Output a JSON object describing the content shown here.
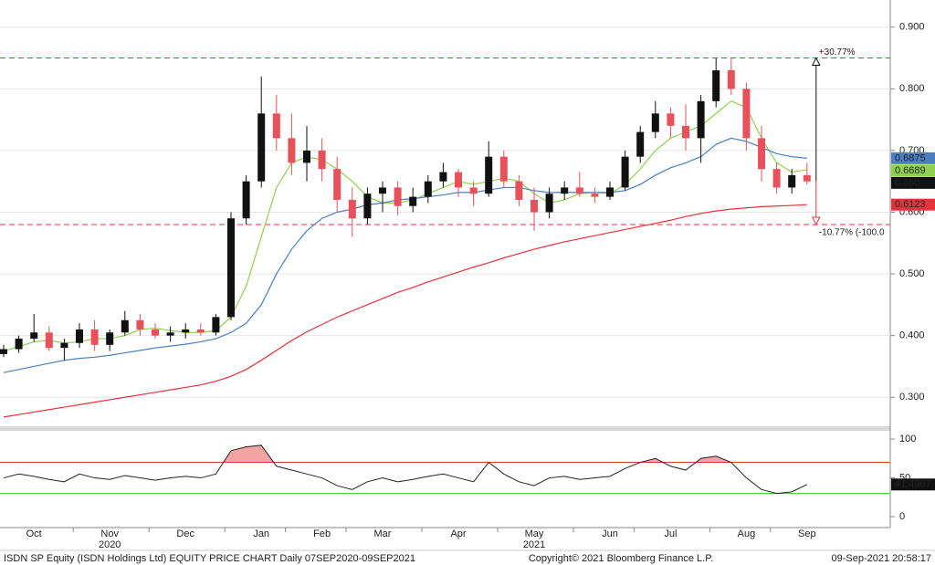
{
  "chart_data": [
    {
      "type": "candlestick",
      "up_color": "#111111",
      "down_color": "#e8505b",
      "open": [
        0.37,
        0.378,
        0.395,
        0.405,
        0.38,
        0.388,
        0.41,
        0.385,
        0.405,
        0.425,
        0.41,
        0.4,
        0.405,
        0.41,
        0.405,
        0.43,
        0.59,
        0.65,
        0.76,
        0.72,
        0.68,
        0.7,
        0.67,
        0.62,
        0.59,
        0.63,
        0.64,
        0.61,
        0.625,
        0.65,
        0.665,
        0.64,
        0.63,
        0.69,
        0.65,
        0.62,
        0.6,
        0.63,
        0.64,
        0.63,
        0.625,
        0.64,
        0.69,
        0.73,
        0.76,
        0.74,
        0.72,
        0.78,
        0.83,
        0.8,
        0.72,
        0.67,
        0.64,
        0.66
      ],
      "high": [
        0.385,
        0.4,
        0.435,
        0.415,
        0.395,
        0.42,
        0.425,
        0.41,
        0.44,
        0.435,
        0.42,
        0.415,
        0.42,
        0.42,
        0.435,
        0.6,
        0.66,
        0.82,
        0.79,
        0.76,
        0.74,
        0.72,
        0.69,
        0.64,
        0.64,
        0.65,
        0.65,
        0.64,
        0.66,
        0.68,
        0.67,
        0.65,
        0.715,
        0.7,
        0.66,
        0.64,
        0.64,
        0.65,
        0.665,
        0.64,
        0.65,
        0.7,
        0.74,
        0.78,
        0.77,
        0.775,
        0.79,
        0.85,
        0.85,
        0.81,
        0.74,
        0.68,
        0.67,
        0.68
      ],
      "low": [
        0.365,
        0.372,
        0.39,
        0.375,
        0.36,
        0.38,
        0.375,
        0.375,
        0.4,
        0.4,
        0.395,
        0.39,
        0.395,
        0.4,
        0.4,
        0.425,
        0.58,
        0.64,
        0.7,
        0.66,
        0.65,
        0.65,
        0.6,
        0.56,
        0.58,
        0.6,
        0.595,
        0.6,
        0.615,
        0.64,
        0.625,
        0.61,
        0.625,
        0.64,
        0.61,
        0.57,
        0.59,
        0.62,
        0.625,
        0.615,
        0.62,
        0.635,
        0.68,
        0.72,
        0.72,
        0.7,
        0.68,
        0.77,
        0.79,
        0.7,
        0.65,
        0.63,
        0.63,
        0.645
      ],
      "close": [
        0.378,
        0.395,
        0.405,
        0.38,
        0.388,
        0.41,
        0.385,
        0.405,
        0.425,
        0.41,
        0.4,
        0.405,
        0.41,
        0.405,
        0.43,
        0.59,
        0.65,
        0.76,
        0.72,
        0.68,
        0.7,
        0.67,
        0.62,
        0.59,
        0.63,
        0.64,
        0.61,
        0.625,
        0.65,
        0.665,
        0.64,
        0.63,
        0.69,
        0.65,
        0.62,
        0.6,
        0.63,
        0.64,
        0.63,
        0.625,
        0.64,
        0.69,
        0.73,
        0.76,
        0.74,
        0.72,
        0.78,
        0.83,
        0.8,
        0.72,
        0.67,
        0.64,
        0.66,
        0.65
      ],
      "last_close_label": "0.650",
      "series": [
        {
          "color": "#8fd14f",
          "values": [
            0.375,
            0.382,
            0.39,
            0.392,
            0.388,
            0.39,
            0.395,
            0.395,
            0.4,
            0.41,
            0.412,
            0.408,
            0.405,
            0.405,
            0.408,
            0.43,
            0.48,
            0.56,
            0.64,
            0.68,
            0.69,
            0.685,
            0.67,
            0.65,
            0.625,
            0.615,
            0.615,
            0.62,
            0.63,
            0.64,
            0.65,
            0.645,
            0.65,
            0.655,
            0.65,
            0.63,
            0.615,
            0.62,
            0.63,
            0.632,
            0.63,
            0.645,
            0.67,
            0.7,
            0.72,
            0.73,
            0.74,
            0.76,
            0.78,
            0.77,
            0.72,
            0.68,
            0.665,
            0.6689
          ]
        },
        {
          "color": "#4a7fc1",
          "values": [
            0.34,
            0.345,
            0.35,
            0.355,
            0.36,
            0.363,
            0.365,
            0.368,
            0.372,
            0.376,
            0.38,
            0.383,
            0.386,
            0.39,
            0.395,
            0.405,
            0.42,
            0.45,
            0.5,
            0.54,
            0.57,
            0.59,
            0.6,
            0.605,
            0.612,
            0.615,
            0.62,
            0.622,
            0.625,
            0.628,
            0.632,
            0.632,
            0.636,
            0.64,
            0.64,
            0.635,
            0.632,
            0.632,
            0.632,
            0.632,
            0.632,
            0.635,
            0.645,
            0.66,
            0.672,
            0.68,
            0.69,
            0.71,
            0.72,
            0.715,
            0.705,
            0.695,
            0.69,
            0.6875
          ]
        },
        {
          "color": "#e8323c",
          "values": [
            0.268,
            0.272,
            0.276,
            0.28,
            0.284,
            0.288,
            0.292,
            0.296,
            0.3,
            0.304,
            0.308,
            0.312,
            0.316,
            0.32,
            0.326,
            0.334,
            0.345,
            0.36,
            0.376,
            0.392,
            0.406,
            0.418,
            0.43,
            0.44,
            0.45,
            0.46,
            0.47,
            0.478,
            0.487,
            0.495,
            0.503,
            0.511,
            0.518,
            0.526,
            0.533,
            0.54,
            0.546,
            0.552,
            0.557,
            0.562,
            0.567,
            0.572,
            0.577,
            0.582,
            0.587,
            0.593,
            0.598,
            0.602,
            0.605,
            0.607,
            0.609,
            0.61,
            0.611,
            0.6123
          ]
        }
      ],
      "ylim": [
        0.253,
        0.944
      ],
      "yticks": [
        {
          "value": 0.3,
          "label": "0.300"
        },
        {
          "value": 0.4,
          "label": "0.400"
        },
        {
          "value": 0.5,
          "label": "0.500"
        },
        {
          "value": 0.6,
          "label": "0.600"
        },
        {
          "value": 0.7,
          "label": "0.700"
        },
        {
          "value": 0.8,
          "label": "0.800"
        },
        {
          "value": 0.9,
          "label": "0.900"
        }
      ],
      "grid": true,
      "annotations": {
        "upper_level": 0.85,
        "upper_label": "+30.77%",
        "lower_level": 0.58,
        "lower_label": "-10.77% (-100.0",
        "upper_color": "#111111",
        "lower_color": "#e8323c"
      }
    },
    {
      "type": "line",
      "categories": [
        null,
        null,
        "Oct",
        null,
        null,
        null,
        null,
        "Nov",
        null,
        null,
        null,
        null,
        "Dec",
        null,
        null,
        null,
        null,
        "Jan",
        null,
        null,
        null,
        "Feb",
        null,
        null,
        null,
        "Mar",
        null,
        null,
        null,
        null,
        "Apr",
        null,
        null,
        null,
        null,
        "May",
        null,
        null,
        null,
        null,
        "Jun",
        null,
        null,
        null,
        "Jul",
        null,
        null,
        null,
        null,
        "Aug",
        null,
        null,
        null,
        "Sep"
      ],
      "years": [
        null,
        null,
        null,
        null,
        null,
        null,
        null,
        "2020",
        null,
        null,
        null,
        null,
        null,
        null,
        null,
        null,
        null,
        null,
        null,
        null,
        null,
        null,
        null,
        null,
        null,
        null,
        null,
        null,
        null,
        null,
        null,
        null,
        null,
        null,
        null,
        "2021",
        null,
        null,
        null,
        null,
        null,
        null,
        null,
        null,
        null,
        null,
        null,
        null,
        null,
        null,
        null,
        null,
        null,
        null
      ],
      "color": "#222222",
      "values": [
        50,
        55,
        52,
        48,
        45,
        55,
        50,
        48,
        53,
        50,
        47,
        50,
        52,
        50,
        55,
        85,
        90,
        92,
        65,
        60,
        55,
        50,
        40,
        35,
        45,
        50,
        45,
        48,
        52,
        55,
        50,
        45,
        70,
        55,
        45,
        40,
        50,
        52,
        48,
        50,
        52,
        62,
        70,
        75,
        65,
        60,
        75,
        78,
        70,
        50,
        35,
        30,
        32,
        41.4967
      ],
      "ylim": [
        -14,
        110.6
      ],
      "yticks": [
        0,
        50,
        100
      ],
      "upper_band": 70,
      "lower_band": 30,
      "upper_color": "#e8323c",
      "lower_color": "#3bc43b",
      "overbought_fill": "#f4a3a3"
    }
  ],
  "footer": {
    "left": "ISDN SP Equity (ISDN Holdings Ltd) EQUITY PRICE CHART  Daily 07SEP2020-09SEP2021",
    "center": "Copyright© 2021 Bloomberg Finance L.P.",
    "right": "09-Sep-2021 20:58:17"
  }
}
